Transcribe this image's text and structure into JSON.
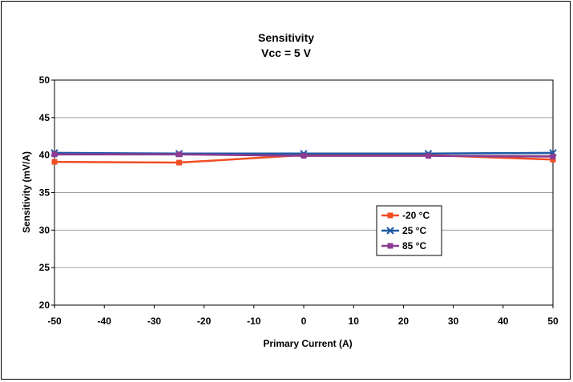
{
  "chart_data": {
    "type": "line",
    "title": "Sensitivity",
    "subtitle": "Vcc = 5 V",
    "xlabel": "Primary Current (A)",
    "ylabel": "Sensitivity (mV/A)",
    "xlim": [
      -50,
      50
    ],
    "ylim": [
      20,
      50
    ],
    "xticks": [
      "-50",
      "-40",
      "-30",
      "-20",
      "-10",
      "0",
      "10",
      "20",
      "30",
      "40",
      "50"
    ],
    "yticks": [
      "20",
      "25",
      "30",
      "35",
      "40",
      "45",
      "50"
    ],
    "grid": "horizontal",
    "legend_position": "center-right",
    "series": [
      {
        "name": "-20 °C",
        "color": "#f04e23",
        "marker": "square",
        "x": [
          -50,
          -25,
          0,
          25,
          50
        ],
        "y": [
          39.1,
          39.0,
          40.0,
          40.0,
          39.4
        ]
      },
      {
        "name": "25 °C",
        "color": "#1f5aa6",
        "marker": "x",
        "x": [
          -50,
          -25,
          0,
          25,
          50
        ],
        "y": [
          40.3,
          40.2,
          40.2,
          40.2,
          40.3
        ]
      },
      {
        "name": "85 °C",
        "color": "#8e3b93",
        "marker": "square",
        "x": [
          -50,
          -25,
          0,
          25,
          50
        ],
        "y": [
          40.1,
          40.1,
          39.9,
          39.9,
          39.8
        ]
      }
    ]
  }
}
